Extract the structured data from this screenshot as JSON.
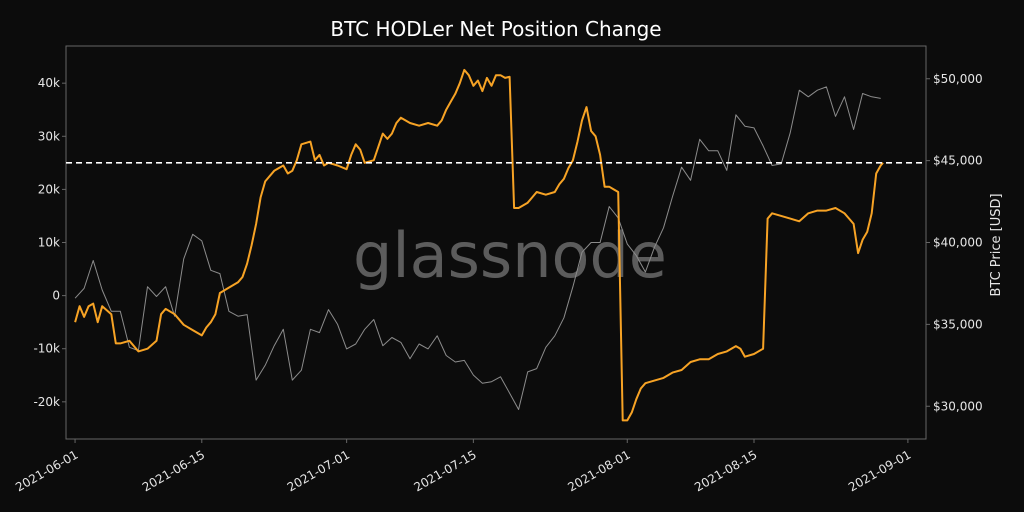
{
  "chart_data": {
    "type": "line",
    "title": "BTC HODLer Net Position Change",
    "watermark": "glassnode",
    "ylabel_right": "BTC Price [USD]",
    "ylabel_left": "",
    "xlabel": "",
    "x_range": [
      "2021-05-31",
      "2021-09-03"
    ],
    "x_ticks": [
      "2021-06-01",
      "2021-06-15",
      "2021-07-01",
      "2021-07-15",
      "2021-08-01",
      "2021-08-15",
      "2021-09-01"
    ],
    "ylim_left": [
      -27000,
      47000
    ],
    "ylim_right": [
      28000,
      52000
    ],
    "y_ticks_left": [
      {
        "value": -20000,
        "label": "-20k"
      },
      {
        "value": -10000,
        "label": "-10k"
      },
      {
        "value": 0,
        "label": "0"
      },
      {
        "value": 10000,
        "label": "10k"
      },
      {
        "value": 20000,
        "label": "20k"
      },
      {
        "value": 30000,
        "label": "30k"
      },
      {
        "value": 40000,
        "label": "40k"
      }
    ],
    "y_ticks_right": [
      {
        "value": 30000,
        "label": "$30,000"
      },
      {
        "value": 35000,
        "label": "$35,000"
      },
      {
        "value": 40000,
        "label": "$40,000"
      },
      {
        "value": 45000,
        "label": "$45,000"
      },
      {
        "value": 50000,
        "label": "$50,000"
      }
    ],
    "reference_line": {
      "axis": "left",
      "value": 25000,
      "style": "dashed",
      "color": "#ffffff"
    },
    "grid": false,
    "colors": {
      "background": "#0c0c0c",
      "hodler": "#f7a325",
      "price": "#8c8c8c",
      "axis": "#666666"
    },
    "series": [
      {
        "axis": "left",
        "color": "#f7a325",
        "points": [
          [
            "2021-06-01",
            -5000
          ],
          [
            "2021-06-01T12",
            -2000
          ],
          [
            "2021-06-02",
            -4000
          ],
          [
            "2021-06-02T12",
            -2000
          ],
          [
            "2021-06-03",
            -1500
          ],
          [
            "2021-06-03T12",
            -5000
          ],
          [
            "2021-06-04",
            -2000
          ],
          [
            "2021-06-05",
            -3500
          ],
          [
            "2021-06-05T12",
            -9000
          ],
          [
            "2021-06-06",
            -9000
          ],
          [
            "2021-06-07",
            -8500
          ],
          [
            "2021-06-08",
            -10500
          ],
          [
            "2021-06-09",
            -10000
          ],
          [
            "2021-06-10",
            -8500
          ],
          [
            "2021-06-10T12",
            -3500
          ],
          [
            "2021-06-11",
            -2500
          ],
          [
            "2021-06-12",
            -3500
          ],
          [
            "2021-06-13",
            -5500
          ],
          [
            "2021-06-14",
            -6500
          ],
          [
            "2021-06-15",
            -7500
          ],
          [
            "2021-06-15T12",
            -6000
          ],
          [
            "2021-06-16",
            -5000
          ],
          [
            "2021-06-16T12",
            -3500
          ],
          [
            "2021-06-17",
            500
          ],
          [
            "2021-06-18",
            1500
          ],
          [
            "2021-06-19",
            2500
          ],
          [
            "2021-06-19T12",
            3500
          ],
          [
            "2021-06-20",
            6000
          ],
          [
            "2021-06-20T12",
            9500
          ],
          [
            "2021-06-21",
            13500
          ],
          [
            "2021-06-21T12",
            18500
          ],
          [
            "2021-06-22",
            21500
          ],
          [
            "2021-06-23",
            23500
          ],
          [
            "2021-06-24",
            24500
          ],
          [
            "2021-06-24T12",
            23000
          ],
          [
            "2021-06-25",
            23500
          ],
          [
            "2021-06-25T12",
            25500
          ],
          [
            "2021-06-26",
            28500
          ],
          [
            "2021-06-27",
            29000
          ],
          [
            "2021-06-27T12",
            25500
          ],
          [
            "2021-06-28",
            26500
          ],
          [
            "2021-06-28T12",
            24500
          ],
          [
            "2021-06-29",
            25000
          ],
          [
            "2021-06-30",
            24500
          ],
          [
            "2021-07-01",
            23800
          ],
          [
            "2021-07-01T12",
            26500
          ],
          [
            "2021-07-02",
            28500
          ],
          [
            "2021-07-02T12",
            27500
          ],
          [
            "2021-07-03",
            25000
          ],
          [
            "2021-07-04",
            25500
          ],
          [
            "2021-07-05",
            30500
          ],
          [
            "2021-07-05T12",
            29500
          ],
          [
            "2021-07-06",
            30500
          ],
          [
            "2021-07-06T12",
            32500
          ],
          [
            "2021-07-07",
            33500
          ],
          [
            "2021-07-08",
            32500
          ],
          [
            "2021-07-09",
            32000
          ],
          [
            "2021-07-10",
            32500
          ],
          [
            "2021-07-11",
            32000
          ],
          [
            "2021-07-11T12",
            33000
          ],
          [
            "2021-07-12",
            35000
          ],
          [
            "2021-07-12T12",
            36500
          ],
          [
            "2021-07-13",
            38000
          ],
          [
            "2021-07-13T12",
            40000
          ],
          [
            "2021-07-14",
            42500
          ],
          [
            "2021-07-14T12",
            41500
          ],
          [
            "2021-07-15",
            39500
          ],
          [
            "2021-07-15T12",
            40500
          ],
          [
            "2021-07-16",
            38500
          ],
          [
            "2021-07-16T12",
            41000
          ],
          [
            "2021-07-17",
            39500
          ],
          [
            "2021-07-17T12",
            41500
          ],
          [
            "2021-07-18",
            41500
          ],
          [
            "2021-07-18T12",
            41000
          ],
          [
            "2021-07-19",
            41200
          ],
          [
            "2021-07-19T12",
            16500
          ],
          [
            "2021-07-20",
            16500
          ],
          [
            "2021-07-21",
            17500
          ],
          [
            "2021-07-21T12",
            18500
          ],
          [
            "2021-07-22",
            19500
          ],
          [
            "2021-07-23",
            19000
          ],
          [
            "2021-07-24",
            19500
          ],
          [
            "2021-07-24T12",
            21000
          ],
          [
            "2021-07-25",
            22000
          ],
          [
            "2021-07-25T12",
            24000
          ],
          [
            "2021-07-26",
            25500
          ],
          [
            "2021-07-26T12",
            29000
          ],
          [
            "2021-07-27",
            33000
          ],
          [
            "2021-07-27T12",
            35500
          ],
          [
            "2021-07-28",
            31000
          ],
          [
            "2021-07-28T12",
            30000
          ],
          [
            "2021-07-29",
            26500
          ],
          [
            "2021-07-29T12",
            20500
          ],
          [
            "2021-07-30",
            20500
          ],
          [
            "2021-07-30T12",
            20000
          ],
          [
            "2021-07-31",
            19500
          ],
          [
            "2021-07-31T12",
            -23500
          ],
          [
            "2021-08-01",
            -23500
          ],
          [
            "2021-08-01T12",
            -22000
          ],
          [
            "2021-08-02",
            -19500
          ],
          [
            "2021-08-02T12",
            -17500
          ],
          [
            "2021-08-03",
            -16500
          ],
          [
            "2021-08-04",
            -16000
          ],
          [
            "2021-08-05",
            -15500
          ],
          [
            "2021-08-06",
            -14500
          ],
          [
            "2021-08-07",
            -14000
          ],
          [
            "2021-08-08",
            -12500
          ],
          [
            "2021-08-09",
            -12000
          ],
          [
            "2021-08-10",
            -12000
          ],
          [
            "2021-08-11",
            -11000
          ],
          [
            "2021-08-12",
            -10500
          ],
          [
            "2021-08-13",
            -9500
          ],
          [
            "2021-08-13T12",
            -10000
          ],
          [
            "2021-08-14",
            -11500
          ],
          [
            "2021-08-15",
            -11000
          ],
          [
            "2021-08-16",
            -10000
          ],
          [
            "2021-08-16T12",
            14500
          ],
          [
            "2021-08-17",
            15500
          ],
          [
            "2021-08-18",
            15000
          ],
          [
            "2021-08-19",
            14500
          ],
          [
            "2021-08-20",
            14000
          ],
          [
            "2021-08-21",
            15500
          ],
          [
            "2021-08-22",
            16000
          ],
          [
            "2021-08-23",
            16000
          ],
          [
            "2021-08-24",
            16500
          ],
          [
            "2021-08-25",
            15500
          ],
          [
            "2021-08-25T12",
            14500
          ],
          [
            "2021-08-26",
            13500
          ],
          [
            "2021-08-26T12",
            8000
          ],
          [
            "2021-08-27",
            10500
          ],
          [
            "2021-08-27T12",
            12000
          ],
          [
            "2021-08-28",
            15500
          ],
          [
            "2021-08-28T12",
            23000
          ],
          [
            "2021-08-29",
            24500
          ],
          [
            "2021-08-29T06",
            25000
          ]
        ]
      },
      {
        "axis": "right",
        "color": "#8c8c8c",
        "points": [
          [
            "2021-06-01",
            36600
          ],
          [
            "2021-06-02",
            37200
          ],
          [
            "2021-06-03",
            38900
          ],
          [
            "2021-06-04",
            37100
          ],
          [
            "2021-06-05",
            35800
          ],
          [
            "2021-06-06",
            35800
          ],
          [
            "2021-06-07",
            33600
          ],
          [
            "2021-06-08",
            33400
          ],
          [
            "2021-06-09",
            37300
          ],
          [
            "2021-06-10",
            36700
          ],
          [
            "2021-06-11",
            37300
          ],
          [
            "2021-06-12",
            35500
          ],
          [
            "2021-06-13",
            39000
          ],
          [
            "2021-06-14",
            40500
          ],
          [
            "2021-06-15",
            40100
          ],
          [
            "2021-06-16",
            38300
          ],
          [
            "2021-06-17",
            38100
          ],
          [
            "2021-06-18",
            35800
          ],
          [
            "2021-06-19",
            35500
          ],
          [
            "2021-06-20",
            35600
          ],
          [
            "2021-06-21",
            31600
          ],
          [
            "2021-06-22",
            32500
          ],
          [
            "2021-06-23",
            33700
          ],
          [
            "2021-06-24",
            34700
          ],
          [
            "2021-06-25",
            31600
          ],
          [
            "2021-06-26",
            32200
          ],
          [
            "2021-06-27",
            34700
          ],
          [
            "2021-06-28",
            34500
          ],
          [
            "2021-06-29",
            35900
          ],
          [
            "2021-06-30",
            35000
          ],
          [
            "2021-07-01",
            33500
          ],
          [
            "2021-07-02",
            33800
          ],
          [
            "2021-07-03",
            34700
          ],
          [
            "2021-07-04",
            35300
          ],
          [
            "2021-07-05",
            33700
          ],
          [
            "2021-07-06",
            34200
          ],
          [
            "2021-07-07",
            33900
          ],
          [
            "2021-07-08",
            32900
          ],
          [
            "2021-07-09",
            33800
          ],
          [
            "2021-07-10",
            33500
          ],
          [
            "2021-07-11",
            34300
          ],
          [
            "2021-07-12",
            33100
          ],
          [
            "2021-07-13",
            32700
          ],
          [
            "2021-07-14",
            32800
          ],
          [
            "2021-07-15",
            31900
          ],
          [
            "2021-07-16",
            31400
          ],
          [
            "2021-07-17",
            31500
          ],
          [
            "2021-07-18",
            31800
          ],
          [
            "2021-07-19",
            30800
          ],
          [
            "2021-07-20",
            29800
          ],
          [
            "2021-07-21",
            32100
          ],
          [
            "2021-07-22",
            32300
          ],
          [
            "2021-07-23",
            33600
          ],
          [
            "2021-07-24",
            34300
          ],
          [
            "2021-07-25",
            35400
          ],
          [
            "2021-07-26",
            37300
          ],
          [
            "2021-07-27",
            39400
          ],
          [
            "2021-07-28",
            40000
          ],
          [
            "2021-07-29",
            40000
          ],
          [
            "2021-07-30",
            42200
          ],
          [
            "2021-07-31",
            41500
          ],
          [
            "2021-08-01",
            39900
          ],
          [
            "2021-08-02",
            39200
          ],
          [
            "2021-08-03",
            38200
          ],
          [
            "2021-08-04",
            39700
          ],
          [
            "2021-08-05",
            40900
          ],
          [
            "2021-08-06",
            42800
          ],
          [
            "2021-08-07",
            44600
          ],
          [
            "2021-08-08",
            43800
          ],
          [
            "2021-08-09",
            46300
          ],
          [
            "2021-08-10",
            45600
          ],
          [
            "2021-08-11",
            45600
          ],
          [
            "2021-08-12",
            44400
          ],
          [
            "2021-08-13",
            47800
          ],
          [
            "2021-08-14",
            47100
          ],
          [
            "2021-08-15",
            47000
          ],
          [
            "2021-08-16",
            45900
          ],
          [
            "2021-08-17",
            44700
          ],
          [
            "2021-08-18",
            44800
          ],
          [
            "2021-08-19",
            46700
          ],
          [
            "2021-08-20",
            49300
          ],
          [
            "2021-08-21",
            48900
          ],
          [
            "2021-08-22",
            49300
          ],
          [
            "2021-08-23",
            49500
          ],
          [
            "2021-08-24",
            47700
          ],
          [
            "2021-08-25",
            48900
          ],
          [
            "2021-08-26",
            46900
          ],
          [
            "2021-08-27",
            49100
          ],
          [
            "2021-08-28",
            48900
          ],
          [
            "2021-08-29",
            48800
          ]
        ]
      }
    ]
  }
}
